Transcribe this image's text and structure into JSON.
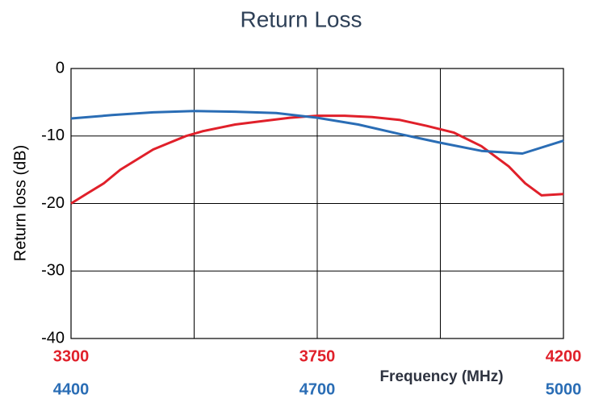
{
  "chart_data": {
    "type": "line",
    "title": "Return Loss",
    "y_label": "Return loss (dB)",
    "x_label": "Frequency (MHz)",
    "xlim": [
      3300,
      4200
    ],
    "xticks": [
      3300,
      3750,
      4200
    ],
    "xgrid": [
      3300,
      3525,
      3750,
      3975,
      4200
    ],
    "x2lim": [
      4400,
      5000
    ],
    "x2ticks": [
      4400,
      4700,
      5000
    ],
    "ylim": [
      -40,
      0
    ],
    "yticks": [
      -40,
      -30,
      -20,
      -10,
      0
    ],
    "grid": true,
    "series": [
      {
        "color": "#e0202a",
        "axis": "x",
        "x": [
          3300,
          3330,
          3360,
          3390,
          3420,
          3450,
          3480,
          3510,
          3540,
          3570,
          3600,
          3650,
          3700,
          3750,
          3800,
          3850,
          3900,
          3950,
          4000,
          4050,
          4100,
          4130,
          4160,
          4200
        ],
        "values": [
          -20,
          -18.5,
          -17,
          -15,
          -13.5,
          -12,
          -11,
          -10,
          -9.3,
          -8.8,
          -8.3,
          -7.8,
          -7.3,
          -7,
          -7,
          -7.2,
          -7.6,
          -8.5,
          -9.5,
          -11.5,
          -14.5,
          -17,
          -18.8,
          -18.6
        ]
      },
      {
        "color": "#2a6db5",
        "axis": "x2",
        "x": [
          4400,
          4450,
          4500,
          4550,
          4600,
          4650,
          4700,
          4750,
          4800,
          4850,
          4900,
          4950,
          5000
        ],
        "values": [
          -7.4,
          -6.9,
          -6.5,
          -6.3,
          -6.4,
          -6.6,
          -7.3,
          -8.3,
          -9.7,
          -11,
          -12.2,
          -12.6,
          -10.7
        ]
      }
    ]
  }
}
